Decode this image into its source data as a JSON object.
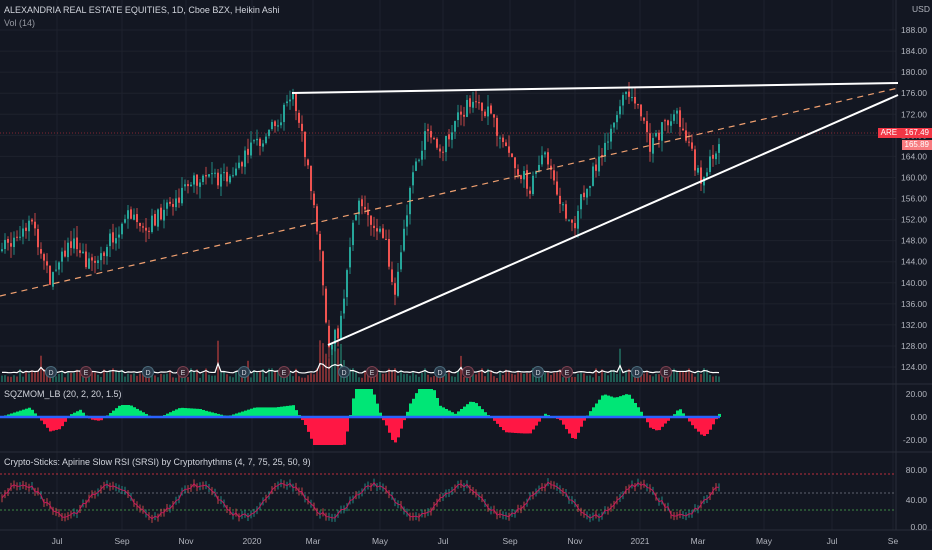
{
  "header": {
    "symbol_line": "ALEXANDRIA REAL ESTATE EQUITIES, 1D, Cboe BZX, Heikin Ashi",
    "volume_line": "Vol (14)"
  },
  "currency": "USD",
  "price_axis": {
    "ticks": [
      "188.00",
      "184.00",
      "180.00",
      "176.00",
      "172.00",
      "168.00",
      "164.00",
      "160.00",
      "156.00",
      "152.00",
      "148.00",
      "144.00",
      "140.00",
      "136.00",
      "132.00",
      "128.00",
      "124.00"
    ],
    "tick_values": [
      188,
      184,
      180,
      176,
      172,
      168,
      164,
      160,
      156,
      152,
      148,
      144,
      140,
      136,
      132,
      128,
      124
    ]
  },
  "price_tags": {
    "ticker_label": "ARE",
    "last_price": "167.49",
    "second_price": "165.89",
    "tag_color": "#f23645",
    "tag_color_2": "#f77c80"
  },
  "time_axis": {
    "labels": [
      "Jul",
      "Sep",
      "Nov",
      "2020",
      "Mar",
      "May",
      "Jul",
      "Sep",
      "Nov",
      "2021",
      "Mar",
      "May",
      "Jul",
      "Se"
    ]
  },
  "indicators": {
    "sqz": {
      "title": "SQZMOM_LB (20, 2, 20, 1.5)",
      "ticks": [
        "20.00",
        "0.00",
        "-20.00"
      ],
      "tick_values": [
        20,
        0,
        -20
      ]
    },
    "rsi": {
      "title": "Crypto-Sticks: Apirine Slow RSI (SRSI) by Cryptorhythms (4, 7, 75, 25, 50, 9)",
      "ticks": [
        "80.00",
        "40.00",
        "0.00"
      ],
      "tick_values": [
        80,
        40,
        0
      ]
    }
  },
  "event_markers": {
    "dividend_label": "D",
    "earnings_label": "E"
  },
  "colors": {
    "background": "#131722",
    "up_candle": "#26a69a",
    "down_candle": "#ef5350",
    "trendline": "#ffffff",
    "dashed_line": "#f0a070",
    "sqz_up": "#00e676",
    "sqz_down": "#ff1744",
    "sqz_zero": "#2962ff",
    "rsi_line": "#c2185b",
    "rsi_upper": "#f23645",
    "rsi_lower": "#4caf50"
  },
  "chart_data": {
    "type": "candlestick",
    "title": "ALEXANDRIA REAL ESTATE EQUITIES, 1D, Cboe BZX, Heikin Ashi",
    "xlabel": "",
    "ylabel": "USD",
    "ylim": [
      122,
      190
    ],
    "x": [
      "2019-05",
      "2019-06",
      "2019-07",
      "2019-08",
      "2019-09",
      "2019-10",
      "2019-11",
      "2019-12",
      "2020-01",
      "2020-02",
      "2020-03a",
      "2020-03b",
      "2020-04",
      "2020-05",
      "2020-06",
      "2020-07",
      "2020-08",
      "2020-09",
      "2020-10",
      "2020-11",
      "2020-12",
      "2021-01",
      "2021-02",
      "2021-03"
    ],
    "close": [
      144,
      146,
      143,
      147,
      150,
      153,
      154,
      156,
      162,
      174,
      133,
      131,
      150,
      140,
      158,
      170,
      166,
      160,
      155,
      155,
      164,
      175,
      168,
      167.49
    ],
    "trendlines_price": {
      "top": [
        175.5,
        177.5
      ],
      "rising_bottom": [
        128,
        176
      ],
      "dashed": [
        138,
        175
      ]
    },
    "last_price": 167.49
  }
}
